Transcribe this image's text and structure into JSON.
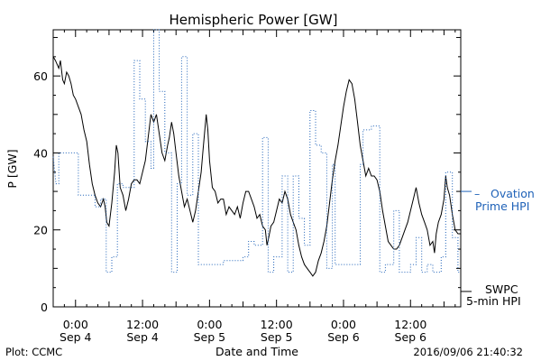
{
  "chart_data": {
    "type": "line",
    "title": "Hemispheric Power [GW]",
    "ylabel": "P [GW]",
    "xlabel": "Date and Time",
    "ylim": [
      0,
      72
    ],
    "xlim": [
      -4,
      69
    ],
    "y_ticks": [
      0,
      20,
      40,
      60
    ],
    "x_ticks": [
      {
        "x": 0,
        "time": "0:00",
        "date": "Sep 4"
      },
      {
        "x": 12,
        "time": "12:00",
        "date": "Sep 4"
      },
      {
        "x": 24,
        "time": "0:00",
        "date": "Sep 5"
      },
      {
        "x": 36,
        "time": "12:00",
        "date": "Sep 5"
      },
      {
        "x": 48,
        "time": "0:00",
        "date": "Sep 6"
      },
      {
        "x": 60,
        "time": "12:00",
        "date": "Sep 6"
      }
    ],
    "grid": false,
    "legend_position": "right",
    "series": [
      {
        "name": "SWPC 5-min HPI",
        "color": "#000000",
        "style": "solid",
        "points": [
          [
            -4,
            65
          ],
          [
            -3.6,
            64
          ],
          [
            -3,
            62
          ],
          [
            -2.7,
            64
          ],
          [
            -2.3,
            59
          ],
          [
            -2,
            58
          ],
          [
            -1.6,
            61
          ],
          [
            -1.2,
            60
          ],
          [
            -0.8,
            58
          ],
          [
            -0.4,
            55
          ],
          [
            0,
            54
          ],
          [
            0.5,
            52
          ],
          [
            1,
            50
          ],
          [
            1.5,
            46
          ],
          [
            2,
            43
          ],
          [
            2.5,
            37
          ],
          [
            3,
            32
          ],
          [
            3.5,
            29
          ],
          [
            4,
            27
          ],
          [
            4.5,
            26
          ],
          [
            5,
            28
          ],
          [
            5.3,
            26
          ],
          [
            5.6,
            22
          ],
          [
            6,
            21
          ],
          [
            6.5,
            27
          ],
          [
            7,
            35
          ],
          [
            7.3,
            42
          ],
          [
            7.6,
            40
          ],
          [
            8,
            31
          ],
          [
            8.5,
            29
          ],
          [
            9,
            25
          ],
          [
            9.5,
            28
          ],
          [
            10,
            32
          ],
          [
            10.5,
            33
          ],
          [
            11,
            33
          ],
          [
            11.5,
            32
          ],
          [
            12,
            35
          ],
          [
            12.5,
            38
          ],
          [
            13,
            44
          ],
          [
            13.5,
            50
          ],
          [
            14,
            48
          ],
          [
            14.5,
            50
          ],
          [
            15,
            45
          ],
          [
            15.5,
            40
          ],
          [
            16,
            38
          ],
          [
            16.5,
            42
          ],
          [
            16.8,
            44
          ],
          [
            17.2,
            48
          ],
          [
            17.6,
            45
          ],
          [
            18,
            40
          ],
          [
            18.5,
            34
          ],
          [
            19,
            30
          ],
          [
            19.5,
            26
          ],
          [
            20,
            28
          ],
          [
            20.5,
            25
          ],
          [
            21,
            22
          ],
          [
            21.5,
            25
          ],
          [
            22,
            30
          ],
          [
            22.5,
            35
          ],
          [
            22.8,
            40
          ],
          [
            23.1,
            45
          ],
          [
            23.4,
            50
          ],
          [
            23.7,
            46
          ],
          [
            24,
            38
          ],
          [
            24.5,
            31
          ],
          [
            25,
            30
          ],
          [
            25.5,
            27
          ],
          [
            26,
            28
          ],
          [
            26.5,
            28
          ],
          [
            27,
            24
          ],
          [
            27.5,
            26
          ],
          [
            28,
            25
          ],
          [
            28.5,
            24
          ],
          [
            29,
            26
          ],
          [
            29.5,
            23
          ],
          [
            30,
            27
          ],
          [
            30.5,
            30
          ],
          [
            31,
            30
          ],
          [
            31.5,
            28
          ],
          [
            32,
            26
          ],
          [
            32.5,
            23
          ],
          [
            33,
            24
          ],
          [
            33.5,
            21
          ],
          [
            34,
            20
          ],
          [
            34.3,
            16
          ],
          [
            34.6,
            18
          ],
          [
            35,
            21
          ],
          [
            35.5,
            22
          ],
          [
            36,
            25
          ],
          [
            36.5,
            28
          ],
          [
            37,
            27
          ],
          [
            37.5,
            30
          ],
          [
            38,
            28
          ],
          [
            38.5,
            24
          ],
          [
            39,
            22
          ],
          [
            39.5,
            20
          ],
          [
            40,
            16
          ],
          [
            40.5,
            13
          ],
          [
            41,
            11
          ],
          [
            41.5,
            10
          ],
          [
            42,
            9
          ],
          [
            42.5,
            8
          ],
          [
            43,
            9
          ],
          [
            43.5,
            12
          ],
          [
            44,
            14
          ],
          [
            44.5,
            17
          ],
          [
            45,
            21
          ],
          [
            45.5,
            27
          ],
          [
            46,
            33
          ],
          [
            46.5,
            38
          ],
          [
            47,
            42
          ],
          [
            47.5,
            47
          ],
          [
            48,
            52
          ],
          [
            48.5,
            56
          ],
          [
            49,
            59
          ],
          [
            49.5,
            58
          ],
          [
            50,
            54
          ],
          [
            50.5,
            48
          ],
          [
            51,
            42
          ],
          [
            51.5,
            38
          ],
          [
            52,
            34
          ],
          [
            52.5,
            36
          ],
          [
            53,
            34
          ],
          [
            53.5,
            34
          ],
          [
            54,
            33
          ],
          [
            54.5,
            30
          ],
          [
            55,
            25
          ],
          [
            55.5,
            21
          ],
          [
            56,
            17
          ],
          [
            56.5,
            16
          ],
          [
            57,
            15
          ],
          [
            57.5,
            15
          ],
          [
            58,
            16
          ],
          [
            58.5,
            18
          ],
          [
            59,
            20
          ],
          [
            59.5,
            22
          ],
          [
            60,
            25
          ],
          [
            60.5,
            28
          ],
          [
            61,
            31
          ],
          [
            61.5,
            27
          ],
          [
            62,
            24
          ],
          [
            62.5,
            22
          ],
          [
            63,
            20
          ],
          [
            63.5,
            16
          ],
          [
            64,
            17
          ],
          [
            64.3,
            14
          ],
          [
            64.6,
            19
          ],
          [
            65,
            22
          ],
          [
            65.5,
            24
          ],
          [
            66,
            28
          ],
          [
            66.3,
            34
          ],
          [
            66.6,
            31
          ],
          [
            67,
            29
          ],
          [
            67.5,
            24
          ],
          [
            68,
            20
          ],
          [
            68.5,
            19
          ],
          [
            69,
            19
          ]
        ]
      },
      {
        "name": "Ovation Prime HPI",
        "color": "#1f62b8",
        "style": "dotted",
        "points": [
          [
            -4,
            39
          ],
          [
            -3.5,
            32
          ],
          [
            -3,
            32
          ],
          [
            -3,
            40
          ],
          [
            0.5,
            40
          ],
          [
            0.5,
            29
          ],
          [
            2,
            29
          ],
          [
            2,
            29
          ],
          [
            3.5,
            29
          ],
          [
            3.5,
            26
          ],
          [
            4.5,
            26
          ],
          [
            4.5,
            28
          ],
          [
            5.5,
            28
          ],
          [
            5.5,
            9
          ],
          [
            6.5,
            9
          ],
          [
            6.5,
            13
          ],
          [
            7.5,
            13
          ],
          [
            7.5,
            32
          ],
          [
            8.5,
            32
          ],
          [
            8.5,
            31
          ],
          [
            10.5,
            31
          ],
          [
            10.5,
            64
          ],
          [
            11.5,
            64
          ],
          [
            11.5,
            54
          ],
          [
            12.5,
            54
          ],
          [
            12.5,
            43
          ],
          [
            13.5,
            43
          ],
          [
            13.5,
            36
          ],
          [
            14,
            36
          ],
          [
            14,
            72
          ],
          [
            15,
            72
          ],
          [
            15,
            56
          ],
          [
            16,
            56
          ],
          [
            16,
            40
          ],
          [
            17.2,
            40
          ],
          [
            17.2,
            9
          ],
          [
            18.2,
            9
          ],
          [
            18.2,
            32
          ],
          [
            19,
            32
          ],
          [
            19,
            65
          ],
          [
            20,
            65
          ],
          [
            20,
            29
          ],
          [
            21,
            29
          ],
          [
            21,
            45
          ],
          [
            22,
            45
          ],
          [
            22,
            11
          ],
          [
            26.5,
            11
          ],
          [
            26.5,
            12
          ],
          [
            30,
            12
          ],
          [
            30,
            13
          ],
          [
            31,
            13
          ],
          [
            31,
            17
          ],
          [
            32,
            17
          ],
          [
            32,
            16
          ],
          [
            33.5,
            16
          ],
          [
            33.5,
            44
          ],
          [
            34.5,
            44
          ],
          [
            34.5,
            9
          ],
          [
            35.5,
            9
          ],
          [
            35.5,
            13
          ],
          [
            37,
            13
          ],
          [
            37,
            34
          ],
          [
            38,
            34
          ],
          [
            38,
            9
          ],
          [
            39,
            9
          ],
          [
            39,
            34
          ],
          [
            40,
            34
          ],
          [
            40,
            23
          ],
          [
            41,
            23
          ],
          [
            41,
            16
          ],
          [
            42,
            16
          ],
          [
            42,
            51
          ],
          [
            43,
            51
          ],
          [
            43,
            42
          ],
          [
            44,
            42
          ],
          [
            44,
            40
          ],
          [
            45,
            40
          ],
          [
            45,
            10
          ],
          [
            46,
            10
          ],
          [
            46,
            37
          ],
          [
            46.5,
            37
          ],
          [
            46.5,
            11
          ],
          [
            48,
            11
          ],
          [
            48,
            11
          ],
          [
            51,
            11
          ],
          [
            51,
            37
          ],
          [
            51.5,
            37
          ],
          [
            51.5,
            46
          ],
          [
            53,
            46
          ],
          [
            53,
            47
          ],
          [
            54.5,
            47
          ],
          [
            54.5,
            9
          ],
          [
            55.5,
            9
          ],
          [
            55.5,
            11
          ],
          [
            57,
            11
          ],
          [
            57,
            25
          ],
          [
            58,
            25
          ],
          [
            58,
            9
          ],
          [
            60,
            9
          ],
          [
            60,
            11
          ],
          [
            61,
            11
          ],
          [
            61,
            18
          ],
          [
            62,
            18
          ],
          [
            62,
            9
          ],
          [
            63,
            9
          ],
          [
            63,
            11
          ],
          [
            64,
            11
          ],
          [
            64,
            9
          ],
          [
            65.5,
            9
          ],
          [
            65.5,
            13
          ],
          [
            66.3,
            13
          ],
          [
            66.3,
            35
          ],
          [
            67.5,
            35
          ],
          [
            67.5,
            18
          ],
          [
            68.5,
            18
          ],
          [
            68.5,
            9
          ],
          [
            69,
            9
          ]
        ]
      }
    ],
    "markers": [
      {
        "series": "Ovation Prime HPI",
        "value": 30
      },
      {
        "series": "SWPC 5-min HPI",
        "value": 4
      }
    ]
  },
  "legend": {
    "ovation_line1": "Ovation",
    "ovation_line2": "Prime HPI",
    "swpc_line1": "SWPC",
    "swpc_line2": "5-min HPI",
    "ovation_dash": "–"
  },
  "footer": {
    "left": "Plot: CCMC",
    "right": "2016/09/06 21:40:32"
  }
}
